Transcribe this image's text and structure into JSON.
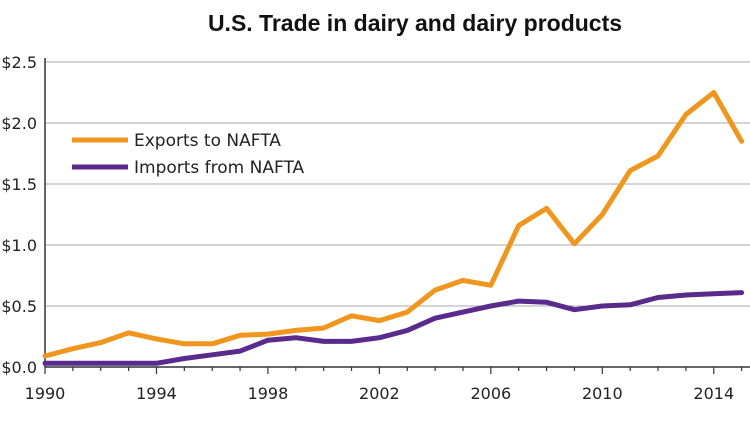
{
  "chart_data": {
    "type": "line",
    "title": "U.S. Trade in dairy and dairy products",
    "xlabel": "",
    "ylabel": "",
    "xlim": [
      1990,
      2015
    ],
    "ylim": [
      0,
      2.5
    ],
    "x_ticks": [
      "1990",
      "1994",
      "1998",
      "2002",
      "2006",
      "2010",
      "2014"
    ],
    "x_tick_values": [
      1990,
      1994,
      1998,
      2002,
      2006,
      2010,
      2014
    ],
    "y_ticks": [
      "$0.0",
      "$0.5",
      "$1.0",
      "$1.5",
      "$2.0",
      "$2.5"
    ],
    "y_tick_values": [
      0,
      0.5,
      1.0,
      1.5,
      2.0,
      2.5
    ],
    "grid": "horizontal",
    "legend_position": "left",
    "x": [
      1990,
      1991,
      1992,
      1993,
      1994,
      1995,
      1996,
      1997,
      1998,
      1999,
      2000,
      2001,
      2002,
      2003,
      2004,
      2005,
      2006,
      2007,
      2008,
      2009,
      2010,
      2011,
      2012,
      2013,
      2014,
      2015
    ],
    "series": [
      {
        "name": "Exports to NAFTA",
        "color": "#f0961e",
        "values": [
          0.09,
          0.15,
          0.2,
          0.28,
          0.23,
          0.19,
          0.19,
          0.26,
          0.27,
          0.3,
          0.32,
          0.42,
          0.38,
          0.45,
          0.63,
          0.71,
          0.67,
          1.16,
          1.3,
          1.01,
          1.25,
          1.61,
          1.73,
          2.07,
          2.25,
          1.85
        ]
      },
      {
        "name": "Imports from NAFTA",
        "color": "#5a2a8c",
        "values": [
          0.03,
          0.03,
          0.03,
          0.03,
          0.03,
          0.07,
          0.1,
          0.13,
          0.22,
          0.24,
          0.21,
          0.21,
          0.24,
          0.3,
          0.4,
          0.45,
          0.5,
          0.54,
          0.53,
          0.47,
          0.5,
          0.51,
          0.57,
          0.59,
          0.6,
          0.61
        ]
      }
    ]
  }
}
